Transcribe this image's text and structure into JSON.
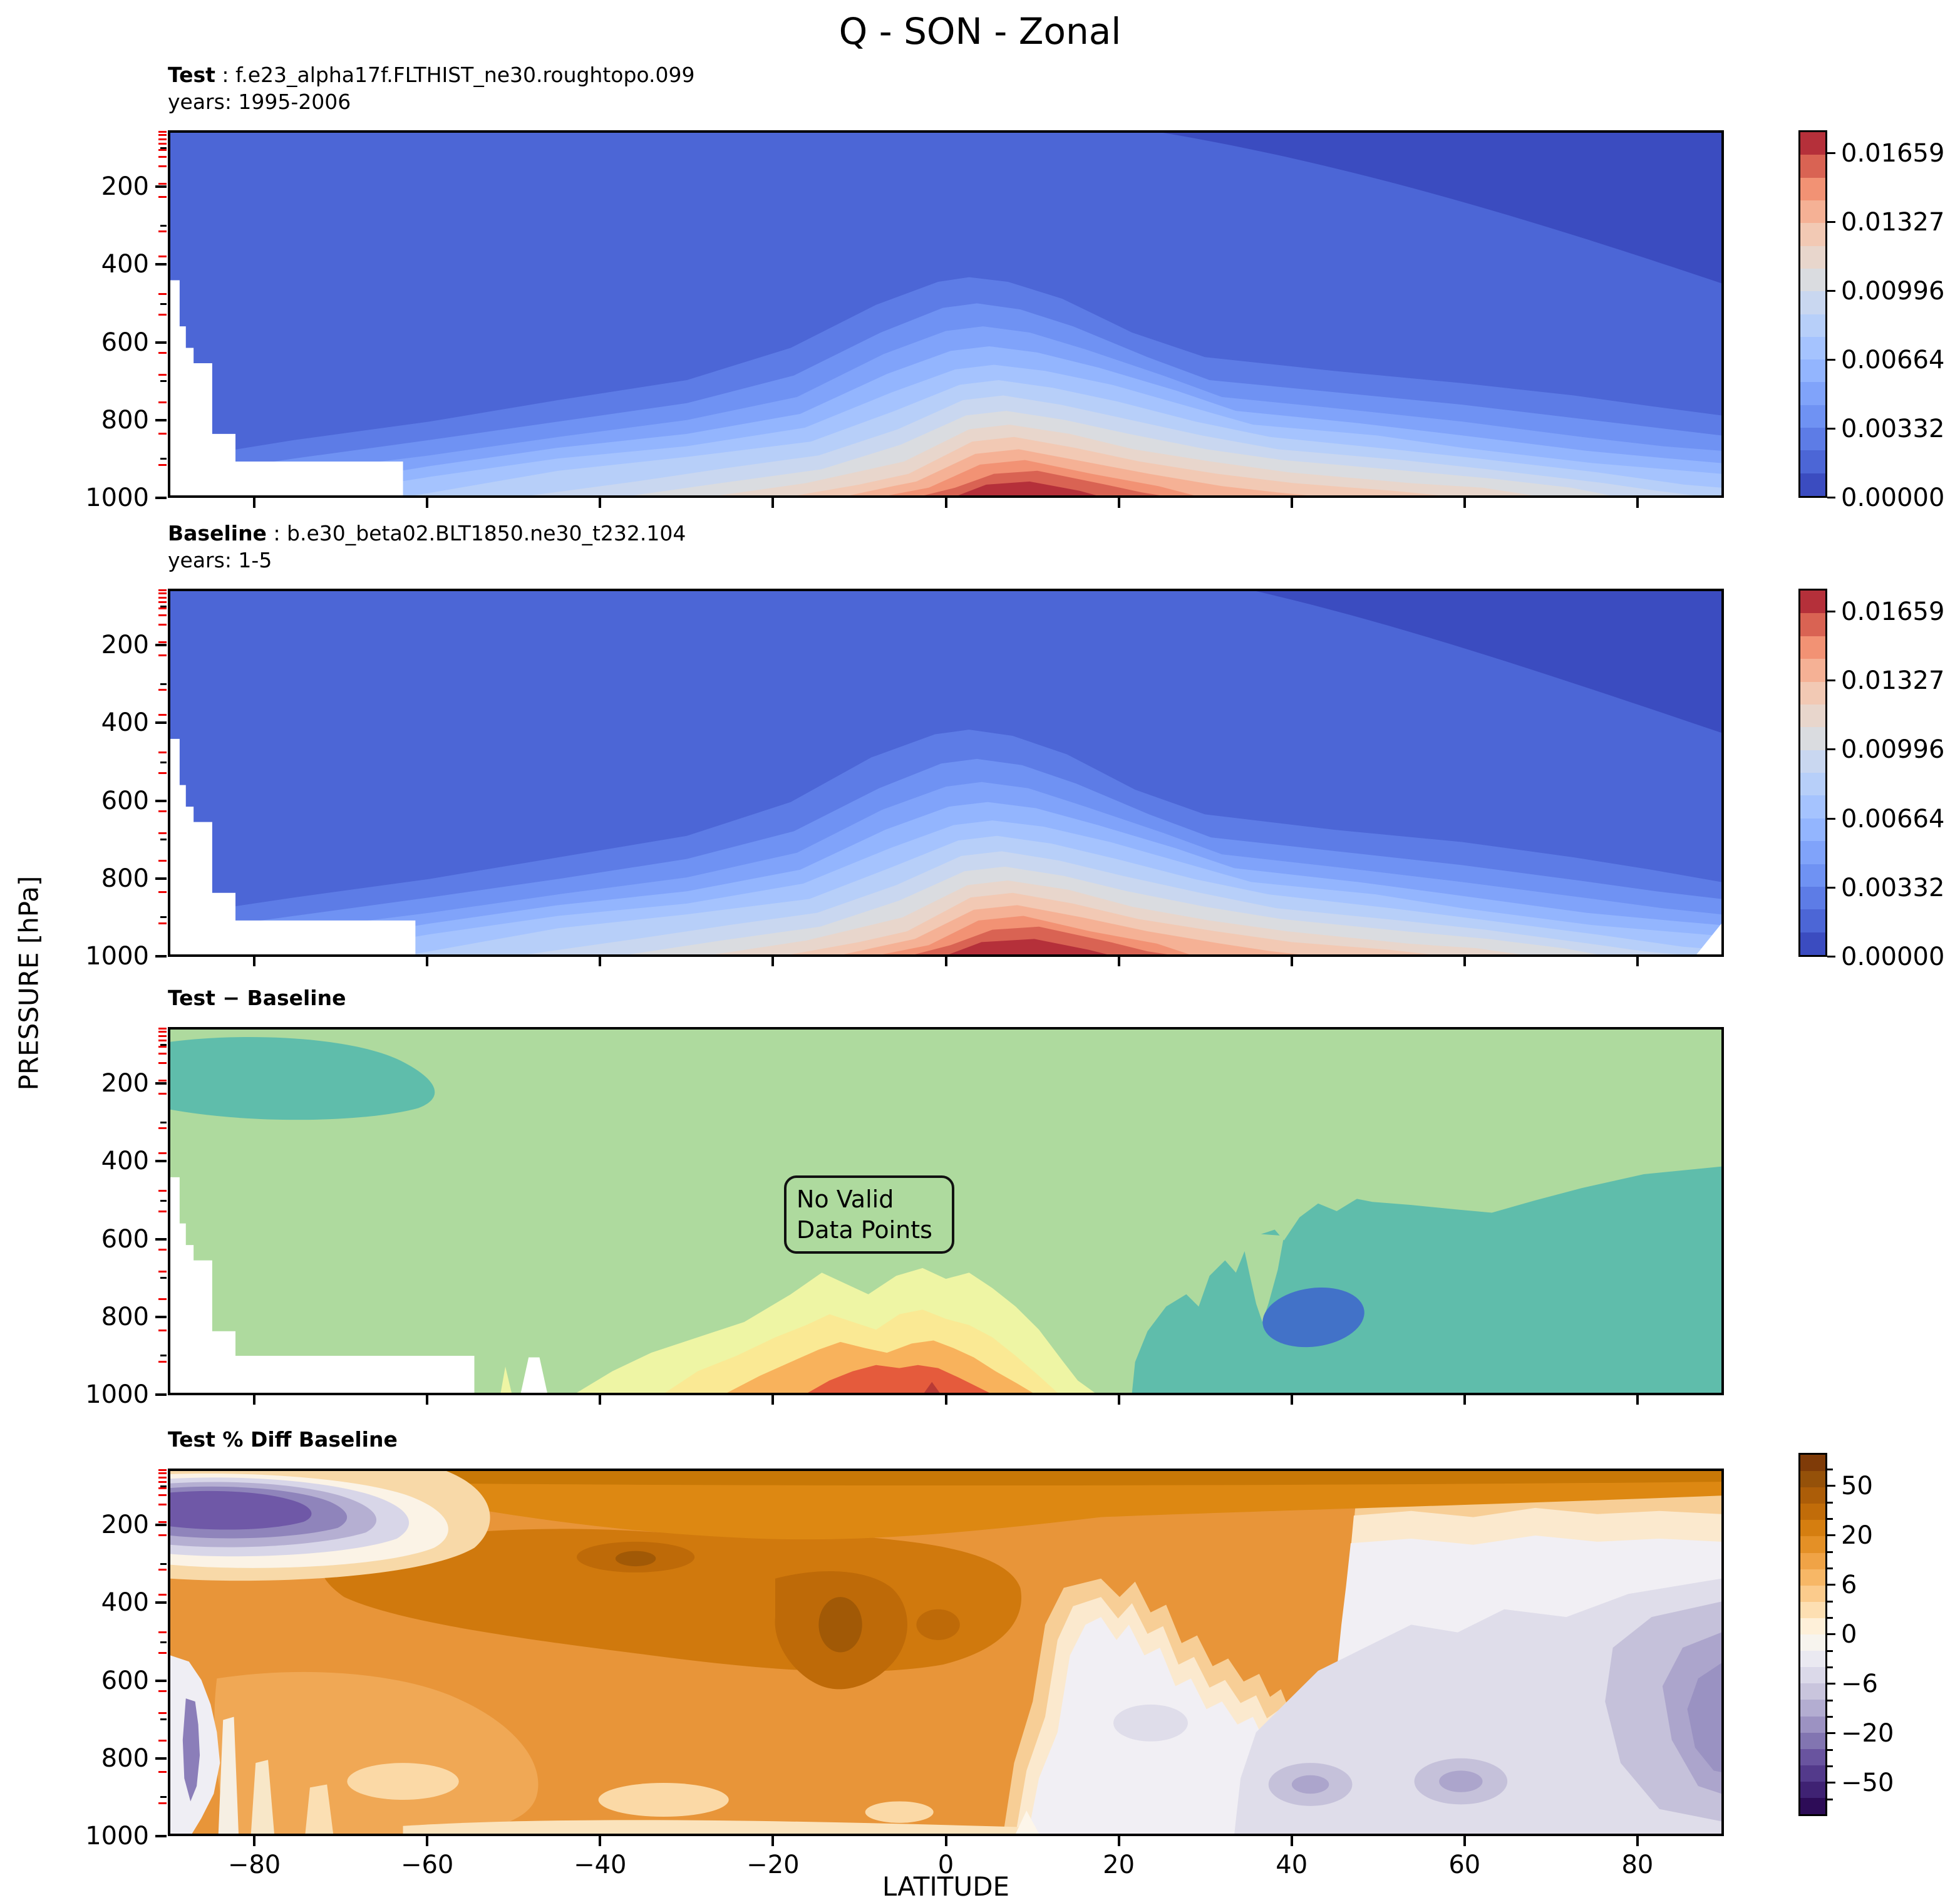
{
  "title": "Q - SON - Zonal",
  "axis": {
    "ylabel": "PRESSURE [hPa]",
    "xlabel": "LATITUDE",
    "y_major": [
      {
        "label": "200",
        "pct": 15.3
      },
      {
        "label": "400",
        "pct": 36.5
      },
      {
        "label": "600",
        "pct": 57.7
      },
      {
        "label": "800",
        "pct": 78.9
      },
      {
        "label": "1000",
        "pct": 100
      }
    ],
    "y_minor_pct": [
      4.8,
      25.9,
      47.2,
      68.3,
      89.4
    ],
    "y_red_pct": [
      0.4,
      1.3,
      2.4,
      3.7,
      5.3,
      7.2,
      9.8,
      14.5,
      18.2,
      27.5,
      34.3,
      44.5,
      50.2,
      60.5,
      66.5,
      74.0,
      82.5,
      91.0
    ],
    "x_major": [
      {
        "label": "−80",
        "pct": 5.556
      },
      {
        "label": "−60",
        "pct": 16.667
      },
      {
        "label": "−40",
        "pct": 27.778
      },
      {
        "label": "−20",
        "pct": 38.889
      },
      {
        "label": "0",
        "pct": 50.0
      },
      {
        "label": "20",
        "pct": 61.111
      },
      {
        "label": "40",
        "pct": 72.222
      },
      {
        "label": "60",
        "pct": 83.333
      },
      {
        "label": "80",
        "pct": 94.444
      }
    ]
  },
  "panels": [
    {
      "id": "test",
      "label_bold": "Test",
      "label_rest": " : f.e23_alpha17f.FLTHIST_ne30.roughtopo.099",
      "years": "years: 1995-2006"
    },
    {
      "id": "baseline",
      "label_bold": "Baseline",
      "label_rest": " : b.e30_beta02.BLT1850.ne30_t232.104",
      "years": "years: 1-5"
    },
    {
      "id": "diff",
      "label_bold": "Test − Baseline",
      "label_rest": "",
      "years": ""
    },
    {
      "id": "pct-diff",
      "label_bold": "Test % Diff Baseline",
      "label_rest": "",
      "years": ""
    }
  ],
  "annotation": {
    "line1": "No Valid",
    "line2": "Data Points"
  },
  "colorbar_q": {
    "colors": [
      "#B5303A",
      "#D96353",
      "#F29274",
      "#F5B195",
      "#F2C9B4",
      "#E8D6CC",
      "#DADCE0",
      "#C9D7F0",
      "#B7CFF9",
      "#A5C3FE",
      "#93B5FE",
      "#80A3FA",
      "#6F92F3",
      "#5D7CE6",
      "#4C66D6",
      "#3B4CC0"
    ],
    "ticks": [
      {
        "label": "0.01659",
        "pct": 6.25
      },
      {
        "label": "0.01327",
        "pct": 25
      },
      {
        "label": "0.00996",
        "pct": 43.75
      },
      {
        "label": "0.00664",
        "pct": 62.5
      },
      {
        "label": "0.00332",
        "pct": 81.25
      },
      {
        "label": "0.00000",
        "pct": 100
      }
    ],
    "minor_pct": []
  },
  "colorbar_pct": {
    "colors": [
      "#7F3B08",
      "#955109",
      "#AC5D08",
      "#C16C09",
      "#D57E10",
      "#E49026",
      "#F0A346",
      "#F7B766",
      "#FBCB8C",
      "#FDDFB2",
      "#FEF0D9",
      "#F7F4EE",
      "#EAE9F1",
      "#DBD9E9",
      "#C9C5DD",
      "#B3ADD1",
      "#9C92C2",
      "#8275B1",
      "#69549F",
      "#533A8B",
      "#3F2273",
      "#2D0C57"
    ],
    "ticks": [
      {
        "label": "50",
        "pct": 9.09
      },
      {
        "label": "20",
        "pct": 22.73
      },
      {
        "label": "6",
        "pct": 36.36
      },
      {
        "label": "0",
        "pct": 50
      },
      {
        "label": "−6",
        "pct": 63.64
      },
      {
        "label": "−20",
        "pct": 77.27
      },
      {
        "label": "−50",
        "pct": 90.91
      }
    ],
    "minor_pct": [
      4.55,
      13.64,
      18.18,
      27.27,
      31.82,
      40.91,
      45.45,
      54.55,
      59.09,
      68.18,
      72.73,
      81.82,
      86.36,
      95.45
    ]
  },
  "palette_diff": {
    "bg": "#AEDA9E",
    "teal": "#5FBDAB",
    "blue": "#4272C8",
    "pale_yellow": "#EEF5A4",
    "yellow": "#FAE994",
    "orange": "#F8B25C",
    "red": "#E55B3C",
    "dark_red": "#B93A35",
    "white": "#FFFFFF"
  },
  "palette_pct": {
    "top1": "#C87806",
    "top2": "#DD8812",
    "bg": "#E89539",
    "mid_dark": "#D0790D",
    "darker": "#BE6A08",
    "darkest": "#A15906",
    "light_orange": "#F0A855",
    "light_orange2": "#F2AE62",
    "pale_pocket": "#FBD9A6",
    "ring_outer": "#F7CE96",
    "ring_warm": "#FBE9CE",
    "pale": "#F1EFF4",
    "lav1": "#DFDDEA",
    "lav2": "#C5C1DA",
    "lav3": "#ACA5CC",
    "lav4": "#9A92C2",
    "tl_ring1": "#F8D9A8",
    "tl_ring2": "#FBF3E6",
    "tl_ring3": "#D8D6E8",
    "tl_ring4": "#B5AFD2",
    "tl_ring5": "#8F84BB",
    "tl_core": "#6F58A7",
    "bl_pale": "#EFEEF4",
    "bl_purple": "#8B7EB9",
    "streak1": "#F6EFE3",
    "streak2": "#F8E7C8",
    "streak3": "#FBDFB3",
    "strip": "#FBE3BC",
    "white": "#FDF6EA"
  },
  "misc": {
    "red_tick_color": "#EE0000",
    "wheat_box_bg": "#F0DEB2",
    "background": "#FFFFFF",
    "frame_color": "#000000"
  },
  "chart_data": {
    "type": "filled_contour",
    "variable": "Q",
    "season": "SON",
    "view": "Zonal",
    "x": {
      "label": "LATITUDE",
      "range": [
        -90,
        90
      ],
      "ticks": [
        -80,
        -60,
        -40,
        -20,
        0,
        20,
        40,
        60,
        80
      ]
    },
    "y": {
      "label": "PRESSURE [hPa]",
      "range": [
        1000,
        55
      ],
      "inverted": true,
      "ticks": [
        200,
        400,
        600,
        800,
        1000
      ]
    },
    "panels": [
      {
        "title": "Test",
        "run": "f.e23_alpha17f.FLTHIST_ne30.roughtopo.099",
        "years": "1995-2006",
        "colormap": "coolwarm",
        "levels": [
          0.0,
          0.00111,
          0.00221,
          0.00332,
          0.00443,
          0.00553,
          0.00664,
          0.00775,
          0.00885,
          0.00996,
          0.01106,
          0.01217,
          0.01327,
          0.01438,
          0.01548,
          0.01659
        ],
        "colorbar_ticks": [
          0.0,
          0.00332,
          0.00664,
          0.00996,
          0.01327,
          0.01659
        ],
        "description": "Zonal-mean specific humidity: maximum >0.0166 near the surface between ~0 and 15N, decreasing upward to near 0 above ~400 hPa and poleward; white cut-out below Antarctic topography at lower left."
      },
      {
        "title": "Baseline",
        "run": "b.e30_beta02.BLT1850.ne30_t232.104",
        "years": "1-5",
        "colormap": "coolwarm",
        "levels": [
          0.0,
          0.00111,
          0.00221,
          0.00332,
          0.00443,
          0.00553,
          0.00664,
          0.00775,
          0.00885,
          0.00996,
          0.01106,
          0.01217,
          0.01327,
          0.01438,
          0.01548,
          0.01659
        ],
        "colorbar_ticks": [
          0.0,
          0.00332,
          0.00664,
          0.00996,
          0.01327,
          0.01659
        ],
        "description": "Nearly identical structure to Test; tropical near-surface maximum slightly broader/stronger."
      },
      {
        "title": "Test − Baseline",
        "colormap": "teal-green-yellow-orange-red diverging",
        "annotation": "No Valid Data Points",
        "description": "Mostly weak positive (light green). Negative (teal) over SH polar upper levels (90S-55S, 50-250 hPa) and NH lower troposphere north of ~15N; local dark-blue minimum near 40N/900 hPa. Strong positive (yellow-orange-red) near the surface from ~35S to 12N with red core near the equator."
      },
      {
        "title": "Test % Diff Baseline",
        "colormap": "PuOr_r",
        "levels": [
          -100,
          -75,
          -50,
          -40,
          -30,
          -20,
          -15,
          -10,
          -6,
          -3,
          -1,
          0,
          1,
          3,
          6,
          10,
          15,
          20,
          30,
          40,
          50,
          75,
          100
        ],
        "colorbar_ticks": [
          -50,
          -20,
          -6,
          0,
          6,
          20,
          50
        ],
        "description": "Positive differences (orange, +10 to >50%) over most of the SH, tropics and upper levels, with darkest orange (>50%) near 20S-0 at 300-500 hPa; strong negative cap (purple, <-50%) over the Antarctic upper levels (90S-62S, 30-200 hPa); weak negative (lavender/purple, -1 to -30%) over the NH mid-to-high-latitude lower troposphere, strongest near the pole at 300-900 hPa."
      }
    ]
  }
}
